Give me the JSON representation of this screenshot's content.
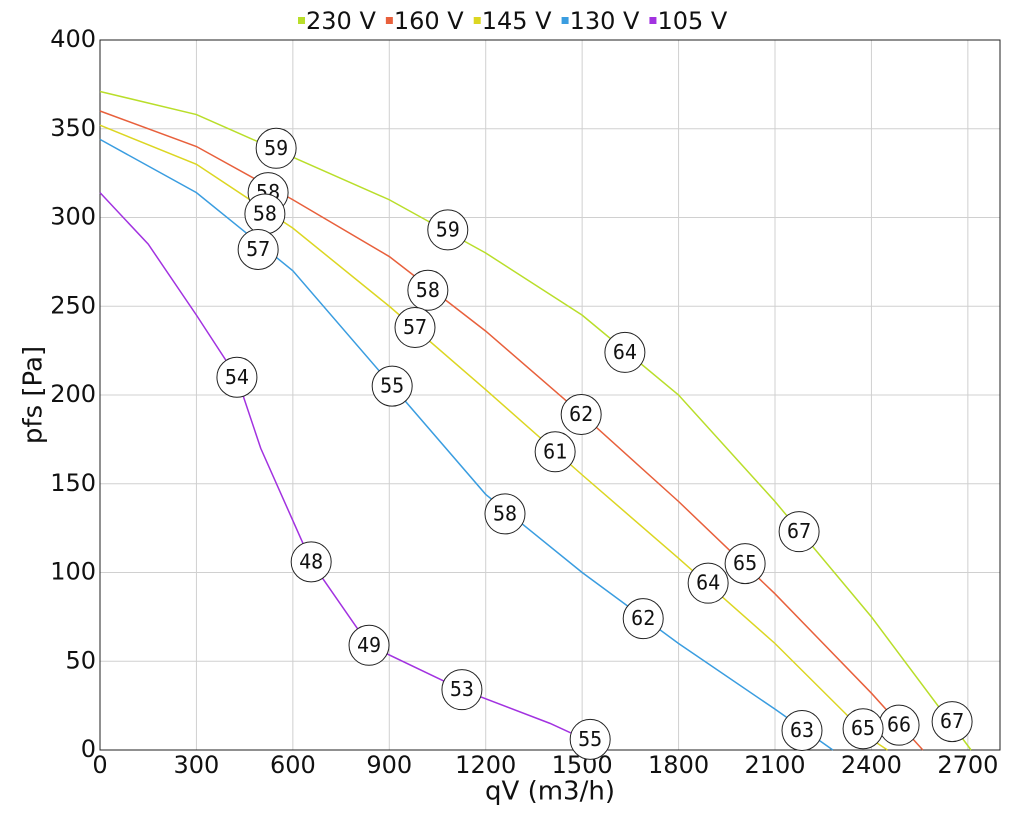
{
  "chart_data": {
    "type": "line",
    "x_label": "qV (m3/h)",
    "y_label": "pfs [Pa]",
    "xlim": [
      0,
      2800
    ],
    "ylim": [
      0,
      400
    ],
    "xticks": [
      0,
      300,
      600,
      900,
      1200,
      1500,
      1800,
      2100,
      2400,
      2700
    ],
    "yticks": [
      0,
      50,
      100,
      150,
      200,
      250,
      300,
      350,
      400
    ],
    "grid": true,
    "legend": "top",
    "series": [
      {
        "name": "230 V",
        "color": "#b9de2a",
        "x": [
          0,
          300,
          600,
          900,
          1200,
          1500,
          1800,
          2100,
          2400,
          2710
        ],
        "values": [
          371,
          358,
          334,
          310,
          280,
          245,
          200,
          140,
          75,
          0
        ],
        "annotations": [
          {
            "x": 548,
            "y": 339,
            "label": 59
          },
          {
            "x": 1082,
            "y": 293,
            "label": 59
          },
          {
            "x": 1633,
            "y": 224,
            "label": 64
          },
          {
            "x": 2175,
            "y": 123,
            "label": 67
          },
          {
            "x": 2651,
            "y": 16,
            "label": 67
          }
        ]
      },
      {
        "name": "160 V",
        "color": "#e8603c",
        "x": [
          0,
          300,
          600,
          900,
          1200,
          1500,
          1800,
          2100,
          2400,
          2560
        ],
        "values": [
          360,
          340,
          310,
          278,
          236,
          189,
          140,
          88,
          32,
          0
        ],
        "annotations": [
          {
            "x": 523,
            "y": 314,
            "label": 58
          },
          {
            "x": 1020,
            "y": 259,
            "label": 58
          },
          {
            "x": 1497,
            "y": 189,
            "label": 62
          },
          {
            "x": 2007,
            "y": 105,
            "label": 65
          },
          {
            "x": 2486,
            "y": 14,
            "label": 66
          }
        ]
      },
      {
        "name": "145 V",
        "color": "#dcd622",
        "x": [
          0,
          300,
          600,
          900,
          1200,
          1500,
          1800,
          2100,
          2400,
          2450
        ],
        "values": [
          352,
          330,
          294,
          250,
          203,
          155,
          108,
          60,
          6,
          0
        ],
        "annotations": [
          {
            "x": 513,
            "y": 302,
            "label": 58
          },
          {
            "x": 980,
            "y": 238,
            "label": 57
          },
          {
            "x": 1416,
            "y": 168,
            "label": 61
          },
          {
            "x": 1892,
            "y": 94,
            "label": 64
          },
          {
            "x": 2374,
            "y": 12,
            "label": 65
          }
        ]
      },
      {
        "name": "130 V",
        "color": "#3a9de0",
        "x": [
          0,
          300,
          600,
          900,
          1200,
          1500,
          1800,
          2100,
          2280
        ],
        "values": [
          344,
          314,
          270,
          207,
          144,
          100,
          60,
          23,
          0
        ],
        "annotations": [
          {
            "x": 492,
            "y": 282,
            "label": 57
          },
          {
            "x": 909,
            "y": 205,
            "label": 55
          },
          {
            "x": 1260,
            "y": 133,
            "label": 58
          },
          {
            "x": 1690,
            "y": 74,
            "label": 62
          },
          {
            "x": 2184,
            "y": 11,
            "label": 63
          }
        ]
      },
      {
        "name": "105 V",
        "color": "#a232e0",
        "x": [
          0,
          150,
          300,
          426,
          500,
          657,
          837,
          1126,
          1400,
          1580
        ],
        "values": [
          314,
          285,
          245,
          210,
          170,
          106,
          59,
          34,
          15,
          0
        ],
        "annotations": [
          {
            "x": 426,
            "y": 210,
            "label": 54
          },
          {
            "x": 657,
            "y": 106,
            "label": 48
          },
          {
            "x": 837,
            "y": 59,
            "label": 49
          },
          {
            "x": 1126,
            "y": 34,
            "label": 53
          },
          {
            "x": 1525,
            "y": 6,
            "label": 55
          }
        ]
      }
    ]
  }
}
